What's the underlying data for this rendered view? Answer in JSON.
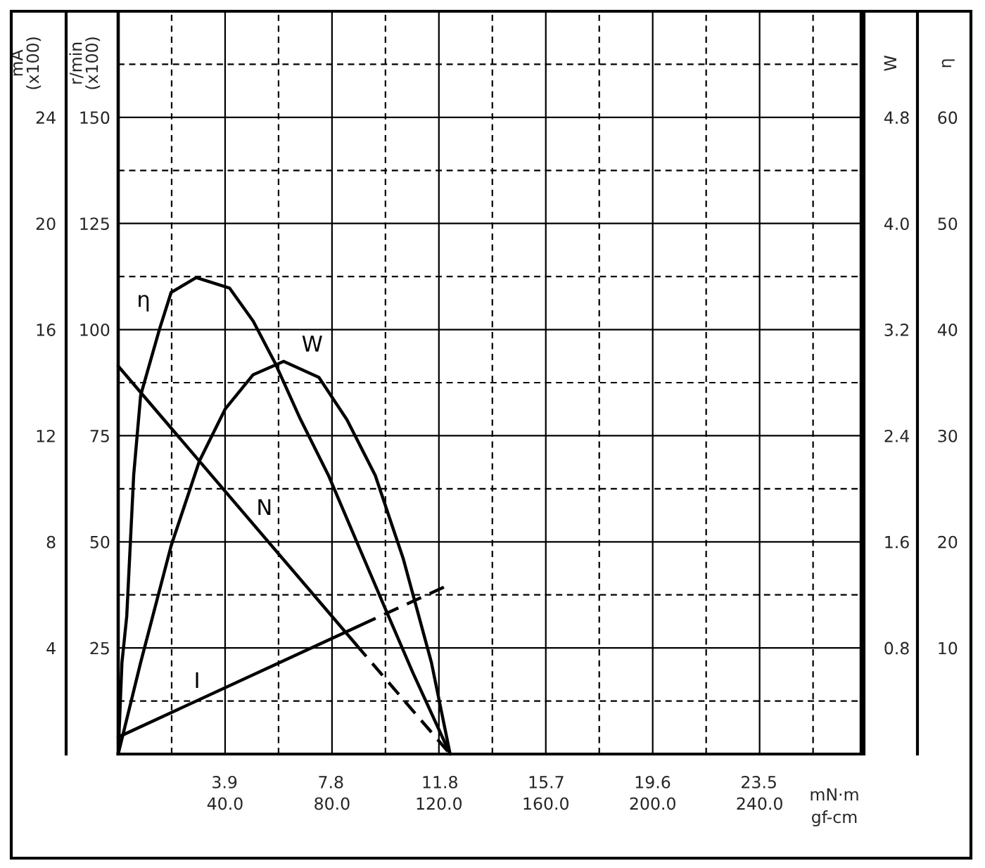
{
  "chart_data": [
    {
      "type": "line",
      "xlim": [
        0,
        278
      ],
      "xticks": [
        {
          "value": 40,
          "label": "40.0"
        },
        {
          "value": 80,
          "label": "80.0"
        },
        {
          "value": 120,
          "label": "120.0"
        },
        {
          "value": 160,
          "label": "160.0"
        },
        {
          "value": 200,
          "label": "200.0"
        },
        {
          "value": 240,
          "label": "240.0"
        }
      ],
      "xlabel": "gf-cm",
      "x2lim": [
        0,
        27.25
      ],
      "x2ticks": [
        3.9,
        7.8,
        11.8,
        15.7,
        19.6,
        23.5
      ],
      "x2label": "mN·m",
      "ylim": [
        0,
        175
      ],
      "yticks": [
        25,
        50,
        75,
        100,
        125,
        150
      ],
      "ylabel": "r/min\n(x100)",
      "y2lim": [
        0,
        28
      ],
      "y2ticks": [
        4,
        8,
        12,
        16,
        20,
        24
      ],
      "y2label": "mA\n(x100)",
      "grid": true,
      "series": [
        {
          "name": "N",
          "color": "#000000",
          "line_style": "solid",
          "x": [
            0,
            89
          ],
          "values": [
            91.4,
            25.8
          ]
        },
        {
          "color": "#000000",
          "line_style": "dashed",
          "x": [
            89,
            124.2
          ],
          "values": [
            25.8,
            0
          ]
        },
        {
          "name": "I",
          "axis": "y2",
          "color": "#000000",
          "line_style": "solid",
          "x": [
            0,
            91
          ],
          "values": [
            0.64,
            4.87
          ]
        },
        {
          "axis": "y2",
          "color": "#000000",
          "line_style": "dashed",
          "x": [
            91,
            124.2
          ],
          "values": [
            4.87,
            6.4
          ]
        }
      ]
    },
    {
      "type": "line",
      "xlim": [
        0,
        278
      ],
      "tick_labels": "y",
      "ylim": [
        0,
        5.6
      ],
      "yticks": [
        0.8,
        1.6,
        2.4,
        3.2,
        {
          "value": 4,
          "label": "4.0"
        },
        4.8
      ],
      "ylabel": "W",
      "y2lim": [
        0,
        70
      ],
      "y2ticks": [
        10,
        20,
        30,
        40,
        50,
        60
      ],
      "y2label": "η",
      "series": [
        {
          "name": "W",
          "color": "#000000",
          "line_style": "solid",
          "x": [
            0,
            8.4,
            19.8,
            30.4,
            40,
            50.5,
            61.9,
            75.1,
            85.6,
            96.2,
            106.7,
            117.2,
            124.2
          ],
          "values": [
            0,
            0.69,
            1.57,
            2.21,
            2.6,
            2.86,
            2.96,
            2.84,
            2.52,
            2.1,
            1.47,
            0.69,
            0
          ]
        },
        {
          "name": "η",
          "axis": "y2",
          "color": "#000000",
          "line_style": "solid",
          "x": [
            0,
            1.4,
            3.2,
            5.8,
            8.4,
            15.4,
            19.8,
            29.2,
            41.7,
            50.5,
            58.8,
            68.1,
            78.6,
            89.1,
            99.6,
            110.2,
            124.2
          ],
          "values": [
            0,
            8.6,
            13,
            26.3,
            33.8,
            40,
            43.5,
            44.9,
            43.9,
            40.8,
            36.8,
            31.6,
            26.3,
            20.1,
            13.9,
            7.7,
            0
          ]
        }
      ]
    }
  ]
}
